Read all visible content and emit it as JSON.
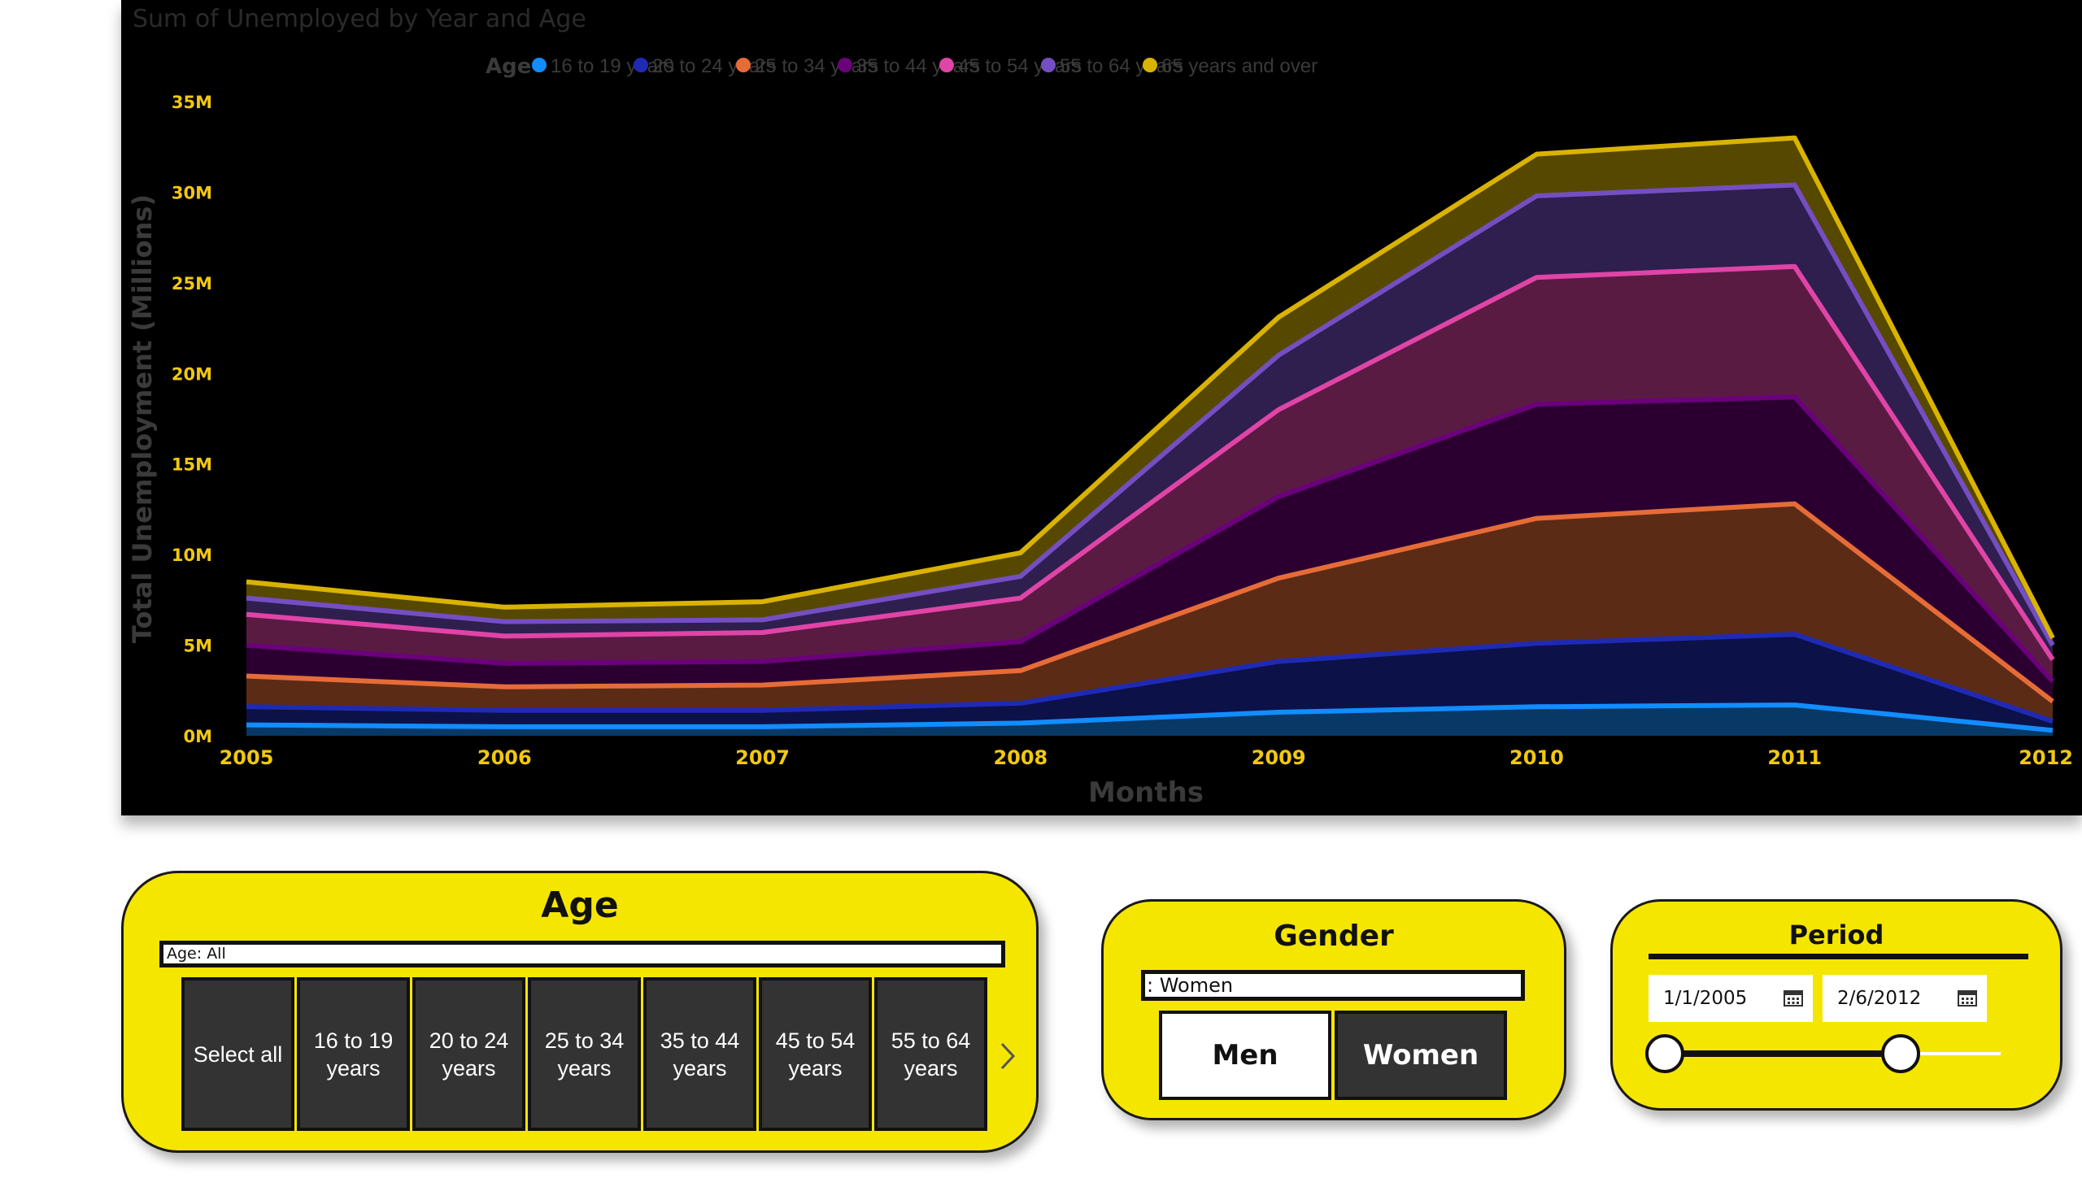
{
  "chart_data": {
    "type": "area",
    "stacked": true,
    "title": "Sum of Unemployed by Year and Age",
    "xlabel": "Months",
    "ylabel": "Total Unemployment (Millions)",
    "legend_title": "Age",
    "legend_position": "top-center",
    "x": [
      2005,
      2006,
      2007,
      2008,
      2009,
      2010,
      2011,
      2012
    ],
    "x_tick_labels": [
      "2005",
      "2006",
      "2007",
      "2008",
      "2009",
      "2010",
      "2011",
      "2012"
    ],
    "y_ticks": [
      0,
      5,
      10,
      15,
      20,
      25,
      30,
      35
    ],
    "y_tick_labels": [
      "0M",
      "5M",
      "10M",
      "15M",
      "20M",
      "25M",
      "30M",
      "35M"
    ],
    "ylim": [
      0,
      35
    ],
    "y_unit": "millions",
    "grid": false,
    "series": [
      {
        "name": "16 to 19 years",
        "color": "#118dff",
        "values": [
          0.6,
          0.5,
          0.5,
          0.7,
          1.3,
          1.6,
          1.7,
          0.3
        ]
      },
      {
        "name": "20 to 24 years",
        "color": "#1f2ab4",
        "values": [
          1.0,
          0.9,
          0.9,
          1.1,
          2.8,
          3.5,
          3.9,
          0.5
        ]
      },
      {
        "name": "25 to 34 years",
        "color": "#e66c37",
        "values": [
          1.7,
          1.3,
          1.4,
          1.8,
          4.6,
          6.9,
          7.2,
          1.1
        ]
      },
      {
        "name": "35 to 44 years",
        "color": "#6b007b",
        "values": [
          1.7,
          1.3,
          1.3,
          1.6,
          4.5,
          6.3,
          5.9,
          1.1
        ]
      },
      {
        "name": "45 to 54 years",
        "color": "#e044a7",
        "values": [
          1.7,
          1.5,
          1.6,
          2.4,
          4.8,
          7.0,
          7.2,
          1.2
        ]
      },
      {
        "name": "55 to 64 years",
        "color": "#744ec2",
        "values": [
          0.9,
          0.8,
          0.7,
          1.2,
          3.0,
          4.5,
          4.5,
          0.8
        ]
      },
      {
        "name": "65 years and over",
        "color": "#d9b300",
        "values": [
          0.9,
          0.8,
          1.0,
          1.3,
          2.1,
          2.3,
          2.6,
          0.4
        ]
      }
    ],
    "colors": {
      "background": "#000000",
      "tick_label": "#f2c80f",
      "title": "#2a2a2a",
      "axis_title": "#3a3a3a",
      "legend_text": "#3a3a3a"
    }
  },
  "slicers": {
    "age": {
      "title": "Age",
      "filter_text": "Age: All",
      "items": [
        "Select all",
        "16 to 19 years",
        "20 to 24 years",
        "25 to 34 years",
        "35 to 44 years",
        "45 to 54 years",
        "55 to 64 years"
      ],
      "next_icon": "chevron-right-icon"
    },
    "gender": {
      "title": "Gender",
      "filter_text": ": Women",
      "items": [
        "Men",
        "Women"
      ]
    },
    "period": {
      "title": "Period",
      "start_date": "1/1/2005",
      "end_date": "2/6/2012",
      "date_icon": "calendar-icon"
    }
  },
  "card_color": "#f5e600"
}
